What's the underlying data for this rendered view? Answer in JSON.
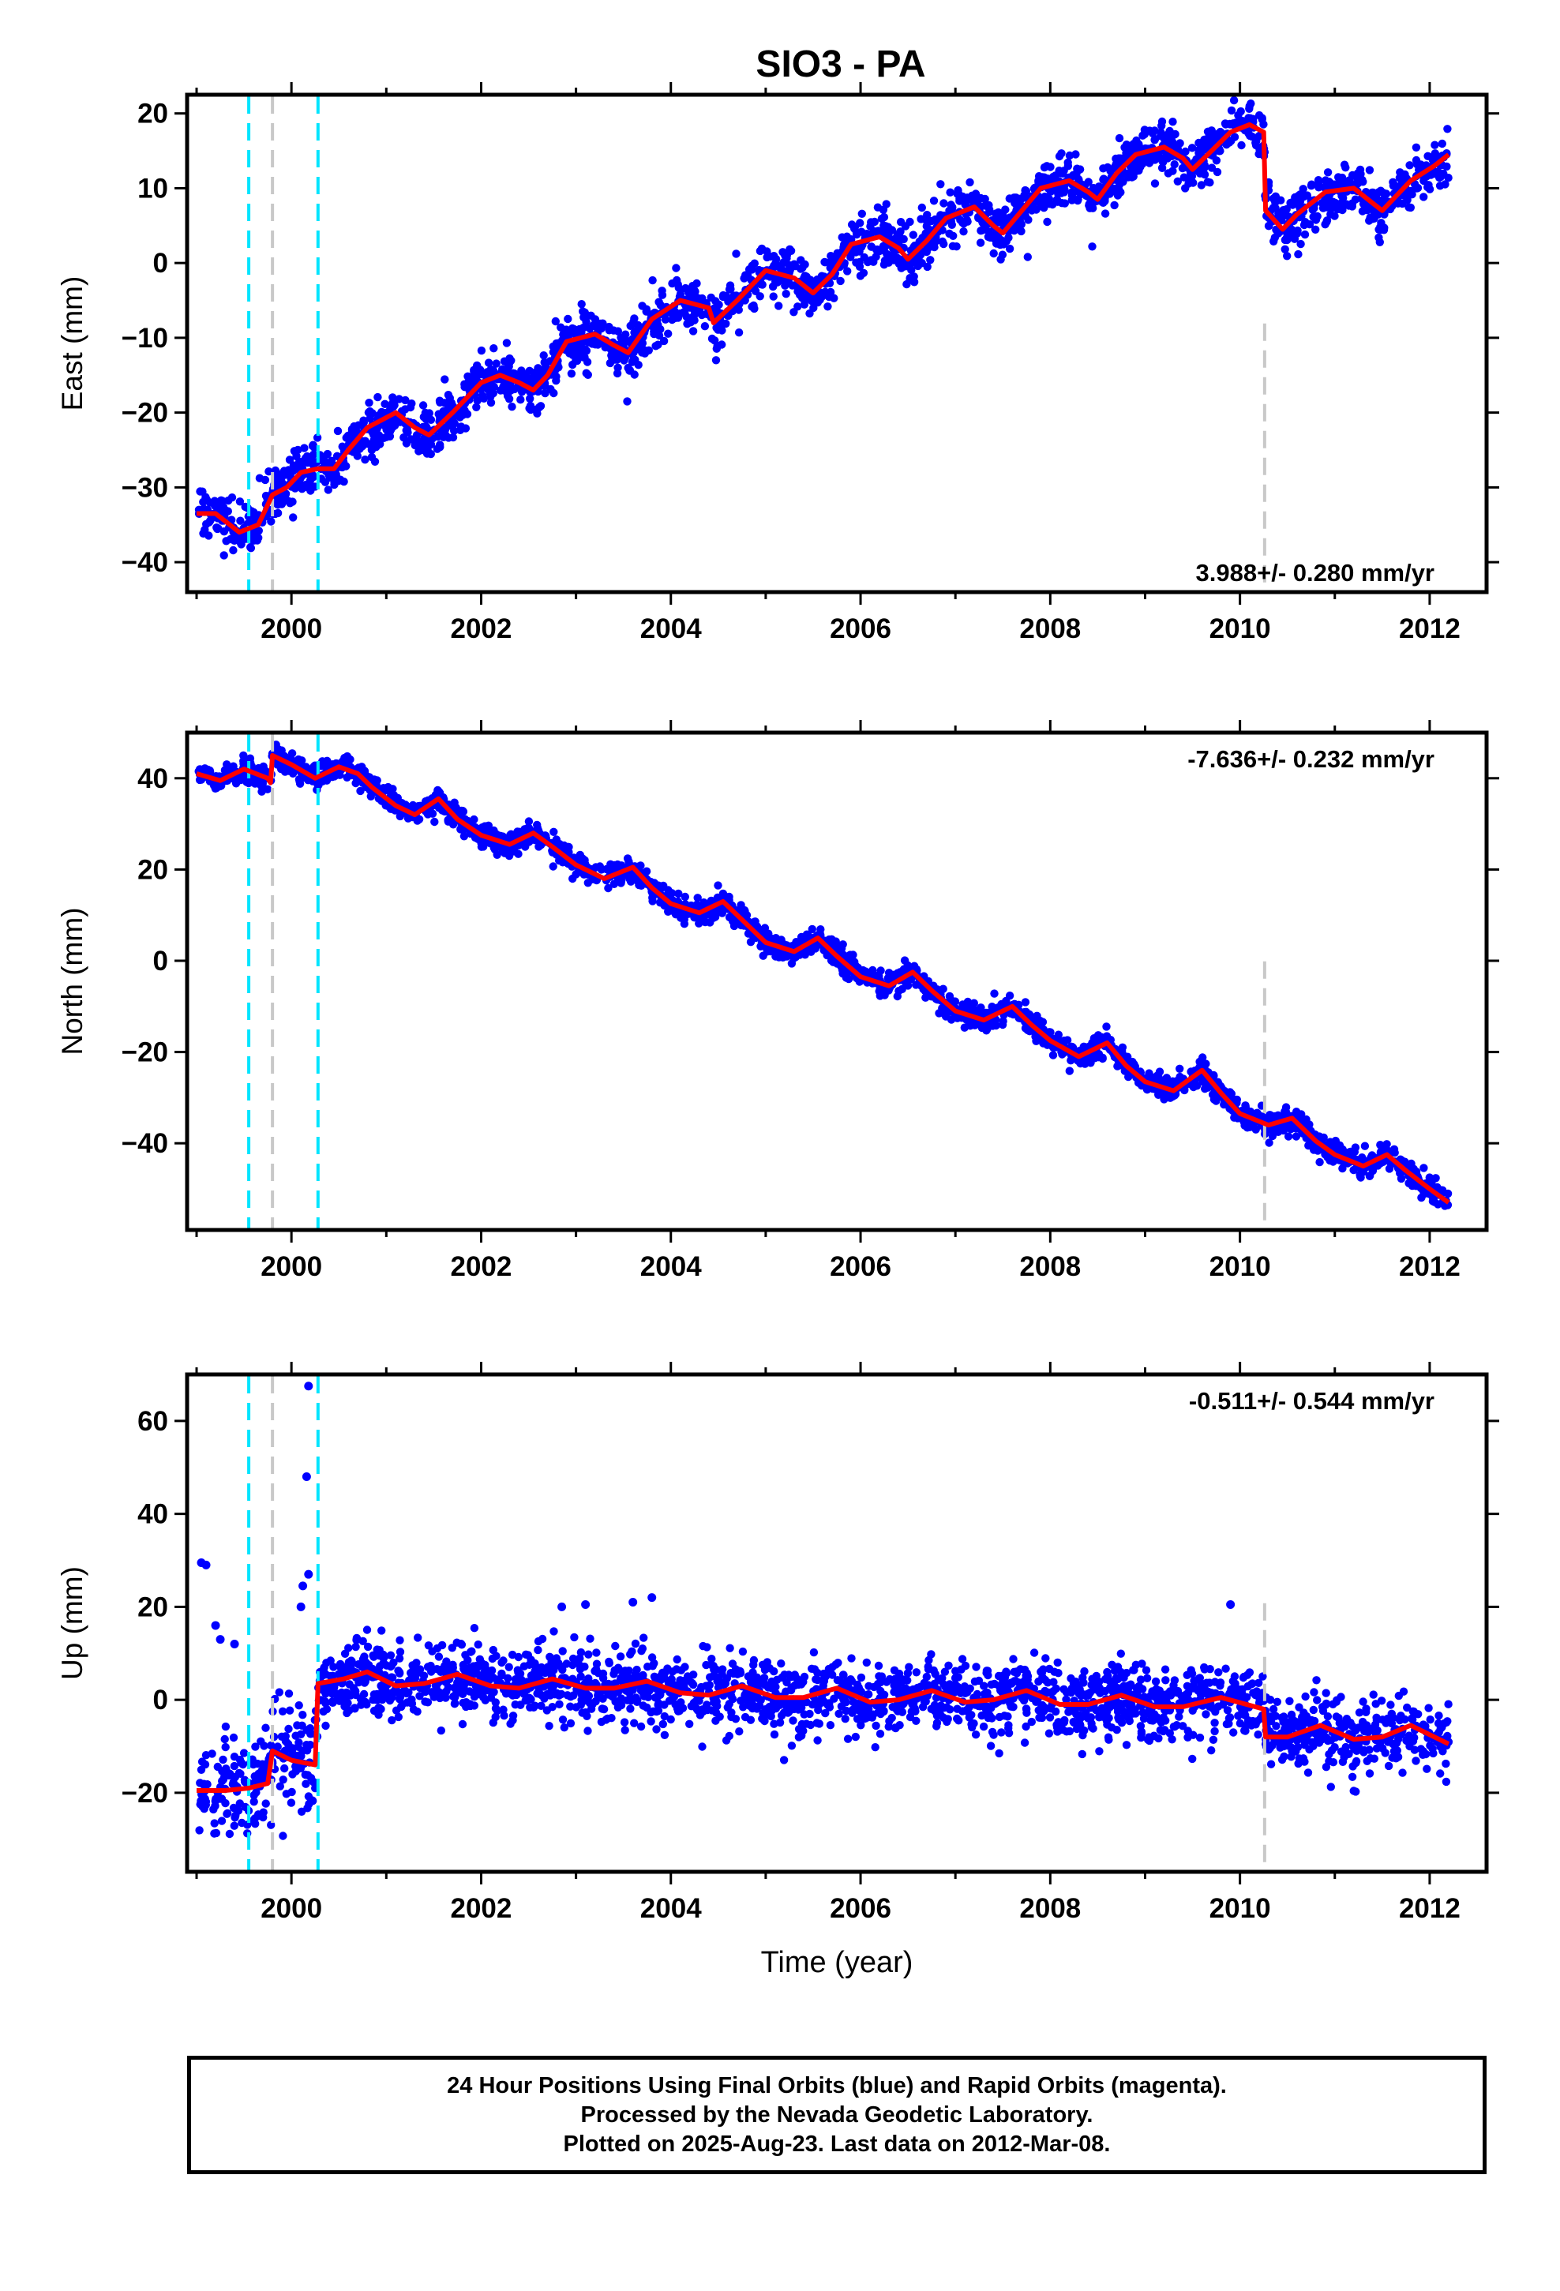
{
  "title": "SIO3 - PA",
  "colors": {
    "data_points": "#0000ff",
    "model_line": "#ff0000",
    "step_equipment": "#00e5ff",
    "step_other": "#c8c8c8",
    "axes": "#000000"
  },
  "chart_data": [
    {
      "type": "scatter",
      "name": "east",
      "ylabel": "East (mm)",
      "xlabel": "",
      "xlim": [
        1998.9,
        2012.6
      ],
      "ylim": [
        -44,
        22.5
      ],
      "xticks": [
        2000,
        2002,
        2004,
        2006,
        2008,
        2010,
        2012
      ],
      "yticks": [
        -40,
        -30,
        -20,
        -10,
        0,
        10,
        20
      ],
      "rate_label": "3.988+/- 0.280 mm/yr",
      "rate_label_position": "bottom-right",
      "steps": [
        {
          "x": 1999.55,
          "kind": "equipment"
        },
        {
          "x": 1999.8,
          "kind": "other"
        },
        {
          "x": 2000.28,
          "kind": "equipment"
        },
        {
          "x": 2010.26,
          "kind": "other",
          "partial": "lower"
        }
      ],
      "model_knots": [
        [
          1999.0,
          -33.5
        ],
        [
          1999.2,
          -33.5
        ],
        [
          1999.45,
          -36
        ],
        [
          1999.65,
          -35
        ],
        [
          1999.8,
          -31
        ],
        [
          1999.95,
          -30
        ],
        [
          2000.1,
          -28
        ],
        [
          2000.28,
          -27.5
        ],
        [
          2000.45,
          -27.5
        ],
        [
          2000.6,
          -25
        ],
        [
          2000.8,
          -22
        ],
        [
          2001.1,
          -20
        ],
        [
          2001.3,
          -22
        ],
        [
          2001.45,
          -23
        ],
        [
          2001.7,
          -20
        ],
        [
          2002.0,
          -16
        ],
        [
          2002.2,
          -15
        ],
        [
          2002.4,
          -16
        ],
        [
          2002.55,
          -17
        ],
        [
          2002.7,
          -15
        ],
        [
          2002.9,
          -10.5
        ],
        [
          2003.2,
          -9.5
        ],
        [
          2003.4,
          -11
        ],
        [
          2003.55,
          -12
        ],
        [
          2003.8,
          -7.5
        ],
        [
          2004.1,
          -5
        ],
        [
          2004.4,
          -6
        ],
        [
          2004.45,
          -8
        ],
        [
          2004.7,
          -5
        ],
        [
          2005.0,
          -1
        ],
        [
          2005.3,
          -2
        ],
        [
          2005.5,
          -4
        ],
        [
          2005.7,
          -1.5
        ],
        [
          2005.9,
          2.5
        ],
        [
          2006.2,
          3.5
        ],
        [
          2006.4,
          2
        ],
        [
          2006.5,
          0.5
        ],
        [
          2006.7,
          3
        ],
        [
          2006.9,
          6
        ],
        [
          2007.2,
          7.5
        ],
        [
          2007.4,
          5
        ],
        [
          2007.5,
          4
        ],
        [
          2007.7,
          7
        ],
        [
          2007.9,
          10
        ],
        [
          2008.2,
          11
        ],
        [
          2008.4,
          9.5
        ],
        [
          2008.5,
          8.5
        ],
        [
          2008.7,
          12
        ],
        [
          2008.9,
          14.5
        ],
        [
          2009.2,
          15.5
        ],
        [
          2009.4,
          14
        ],
        [
          2009.5,
          12.5
        ],
        [
          2009.7,
          15
        ],
        [
          2009.9,
          17.5
        ],
        [
          2010.1,
          18.5
        ],
        [
          2010.25,
          17.5
        ],
        [
          2010.27,
          7
        ],
        [
          2010.45,
          4.5
        ],
        [
          2010.6,
          6.5
        ],
        [
          2010.9,
          9.5
        ],
        [
          2011.2,
          10
        ],
        [
          2011.4,
          8
        ],
        [
          2011.5,
          7
        ],
        [
          2011.8,
          11
        ],
        [
          2012.05,
          13
        ],
        [
          2012.2,
          14.5
        ]
      ],
      "scatter_sd": 1.7
    },
    {
      "type": "scatter",
      "name": "north",
      "ylabel": "North (mm)",
      "xlabel": "",
      "xlim": [
        1998.9,
        2012.6
      ],
      "ylim": [
        -59,
        50
      ],
      "xticks": [
        2000,
        2002,
        2004,
        2006,
        2008,
        2010,
        2012
      ],
      "yticks": [
        -40,
        -20,
        0,
        20,
        40
      ],
      "rate_label": "-7.636+/- 0.232 mm/yr",
      "rate_label_position": "top-right",
      "steps": [
        {
          "x": 1999.55,
          "kind": "equipment"
        },
        {
          "x": 1999.8,
          "kind": "other"
        },
        {
          "x": 2000.28,
          "kind": "equipment"
        },
        {
          "x": 2010.26,
          "kind": "other",
          "partial": "lower"
        }
      ],
      "model_knots": [
        [
          1999.0,
          41
        ],
        [
          1999.25,
          39.5
        ],
        [
          1999.5,
          42
        ],
        [
          1999.75,
          40
        ],
        [
          1999.78,
          39
        ],
        [
          1999.8,
          45
        ],
        [
          2000.0,
          43
        ],
        [
          2000.25,
          40
        ],
        [
          2000.5,
          42.5
        ],
        [
          2000.7,
          41
        ],
        [
          2000.85,
          38
        ],
        [
          2001.1,
          34
        ],
        [
          2001.3,
          32
        ],
        [
          2001.55,
          35.5
        ],
        [
          2001.75,
          31
        ],
        [
          2002.0,
          27.5
        ],
        [
          2002.3,
          25.5
        ],
        [
          2002.55,
          28
        ],
        [
          2002.75,
          25
        ],
        [
          2003.0,
          21
        ],
        [
          2003.3,
          18
        ],
        [
          2003.6,
          20.5
        ],
        [
          2003.8,
          16
        ],
        [
          2004.0,
          12.5
        ],
        [
          2004.3,
          10.5
        ],
        [
          2004.55,
          13
        ],
        [
          2004.75,
          9
        ],
        [
          2005.0,
          4
        ],
        [
          2005.3,
          2
        ],
        [
          2005.55,
          5
        ],
        [
          2005.75,
          1
        ],
        [
          2006.0,
          -3.5
        ],
        [
          2006.3,
          -5.5
        ],
        [
          2006.55,
          -2.5
        ],
        [
          2006.75,
          -6.5
        ],
        [
          2007.0,
          -11
        ],
        [
          2007.3,
          -13
        ],
        [
          2007.6,
          -10
        ],
        [
          2007.8,
          -14
        ],
        [
          2008.0,
          -17.5
        ],
        [
          2008.3,
          -21
        ],
        [
          2008.6,
          -18
        ],
        [
          2008.8,
          -23
        ],
        [
          2009.0,
          -26.5
        ],
        [
          2009.3,
          -28.5
        ],
        [
          2009.6,
          -24
        ],
        [
          2009.8,
          -29
        ],
        [
          2010.0,
          -33.5
        ],
        [
          2010.3,
          -36
        ],
        [
          2010.55,
          -34.5
        ],
        [
          2010.8,
          -39.5
        ],
        [
          2011.0,
          -42.5
        ],
        [
          2011.3,
          -45
        ],
        [
          2011.55,
          -42.5
        ],
        [
          2011.75,
          -46
        ],
        [
          2012.0,
          -50
        ],
        [
          2012.2,
          -53
        ]
      ],
      "scatter_sd": 1.3
    },
    {
      "type": "scatter",
      "name": "up",
      "ylabel": "Up (mm)",
      "xlabel": "Time (year)",
      "xlim": [
        1998.9,
        2012.6
      ],
      "ylim": [
        -37,
        70
      ],
      "xticks": [
        2000,
        2002,
        2004,
        2006,
        2008,
        2010,
        2012
      ],
      "yticks": [
        -20,
        0,
        20,
        40,
        60
      ],
      "rate_label": "-0.511+/- 0.544 mm/yr",
      "rate_label_position": "top-right",
      "steps": [
        {
          "x": 1999.55,
          "kind": "equipment"
        },
        {
          "x": 1999.8,
          "kind": "other"
        },
        {
          "x": 2000.28,
          "kind": "equipment"
        },
        {
          "x": 2010.26,
          "kind": "other",
          "partial": "lower"
        }
      ],
      "model_knots": [
        [
          1999.0,
          -19.5
        ],
        [
          1999.3,
          -19.5
        ],
        [
          1999.55,
          -19
        ],
        [
          1999.75,
          -18
        ],
        [
          1999.8,
          -11
        ],
        [
          2000.0,
          -13
        ],
        [
          2000.25,
          -14
        ],
        [
          2000.28,
          3.5
        ],
        [
          2000.55,
          4.5
        ],
        [
          2000.8,
          6
        ],
        [
          2001.1,
          3
        ],
        [
          2001.4,
          3.5
        ],
        [
          2001.75,
          5.5
        ],
        [
          2002.1,
          3
        ],
        [
          2002.4,
          2.5
        ],
        [
          2002.75,
          4.5
        ],
        [
          2003.1,
          2.5
        ],
        [
          2003.4,
          2.5
        ],
        [
          2003.75,
          4
        ],
        [
          2004.1,
          1.5
        ],
        [
          2004.4,
          1
        ],
        [
          2004.75,
          3
        ],
        [
          2005.1,
          0.5
        ],
        [
          2005.4,
          0.5
        ],
        [
          2005.75,
          2.5
        ],
        [
          2006.1,
          -0.5
        ],
        [
          2006.4,
          0
        ],
        [
          2006.75,
          2
        ],
        [
          2007.1,
          -0.5
        ],
        [
          2007.4,
          0
        ],
        [
          2007.75,
          2
        ],
        [
          2008.1,
          -1
        ],
        [
          2008.4,
          -1
        ],
        [
          2008.75,
          1
        ],
        [
          2009.1,
          -1.5
        ],
        [
          2009.4,
          -1.5
        ],
        [
          2009.8,
          0.5
        ],
        [
          2010.25,
          -2
        ],
        [
          2010.27,
          -8
        ],
        [
          2010.5,
          -8
        ],
        [
          2010.85,
          -5.5
        ],
        [
          2011.2,
          -8.5
        ],
        [
          2011.5,
          -8
        ],
        [
          2011.8,
          -5.5
        ],
        [
          2012.2,
          -9.5
        ]
      ],
      "scatter_sd": 3.8,
      "outliers": [
        [
          2000.18,
          67.5
        ],
        [
          2000.16,
          48
        ],
        [
          1999.05,
          29.5
        ],
        [
          1999.1,
          29
        ],
        [
          2000.18,
          27
        ],
        [
          2000.12,
          24.5
        ],
        [
          1999.2,
          16
        ],
        [
          1999.25,
          13
        ],
        [
          1999.4,
          12
        ],
        [
          2002.85,
          20
        ],
        [
          2003.1,
          20.5
        ],
        [
          2003.8,
          22
        ],
        [
          2003.6,
          21
        ],
        [
          2009.9,
          20.5
        ],
        [
          2000.1,
          20
        ]
      ]
    }
  ],
  "footer": {
    "line1": "24 Hour Positions Using Final Orbits (blue) and Rapid Orbits (magenta).",
    "line2": "Processed by the Nevada Geodetic Laboratory.",
    "line3": "Plotted on 2025-Aug-23. Last data on 2012-Mar-08."
  }
}
